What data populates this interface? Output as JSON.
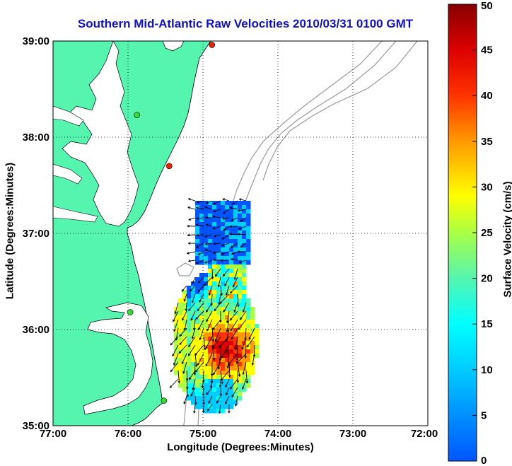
{
  "title": "Southern Mid-Atlantic Raw Velocities 2010/03/31 0100 GMT",
  "xlabel": "Longitude (Degrees:Minutes)",
  "ylabel": "Latitude (Degrees:Minutes)",
  "colorbar_label": "Surface Velocity (cm/s)",
  "xticks": [
    "77:00",
    "76:00",
    "75:00",
    "74:00",
    "73:00",
    "72:00"
  ],
  "yticks": [
    "39:00",
    "38:00",
    "37:00",
    "36:00",
    "35:00"
  ],
  "colorbar_ticks": [
    "0",
    "5",
    "10",
    "15",
    "20",
    "25",
    "30",
    "35",
    "40",
    "45",
    "50"
  ],
  "colors": {
    "land": "#55f5b0",
    "title": "#1111cc",
    "arrow": "#000000",
    "bathymetry": "#999999"
  },
  "chart_data": {
    "type": "heatmap",
    "title": "Southern Mid-Atlantic Raw Velocities 2010/03/31 0100 GMT",
    "xlabel": "Longitude (Degrees:Minutes)",
    "ylabel": "Latitude (Degrees:Minutes)",
    "xlim": [
      -77,
      -72
    ],
    "ylim": [
      35,
      39
    ],
    "grid": true,
    "colorbar": {
      "label": "Surface Velocity (cm/s)",
      "range": [
        0,
        50
      ]
    },
    "stations": [
      {
        "lon": -74.88,
        "lat": 38.96,
        "status": "red"
      },
      {
        "lon": -75.88,
        "lat": 38.23,
        "status": "green"
      },
      {
        "lon": -75.45,
        "lat": 37.7,
        "status": "red"
      },
      {
        "lon": -75.97,
        "lat": 36.18,
        "status": "green"
      },
      {
        "lon": -75.52,
        "lat": 35.26,
        "status": "green"
      }
    ]
  }
}
